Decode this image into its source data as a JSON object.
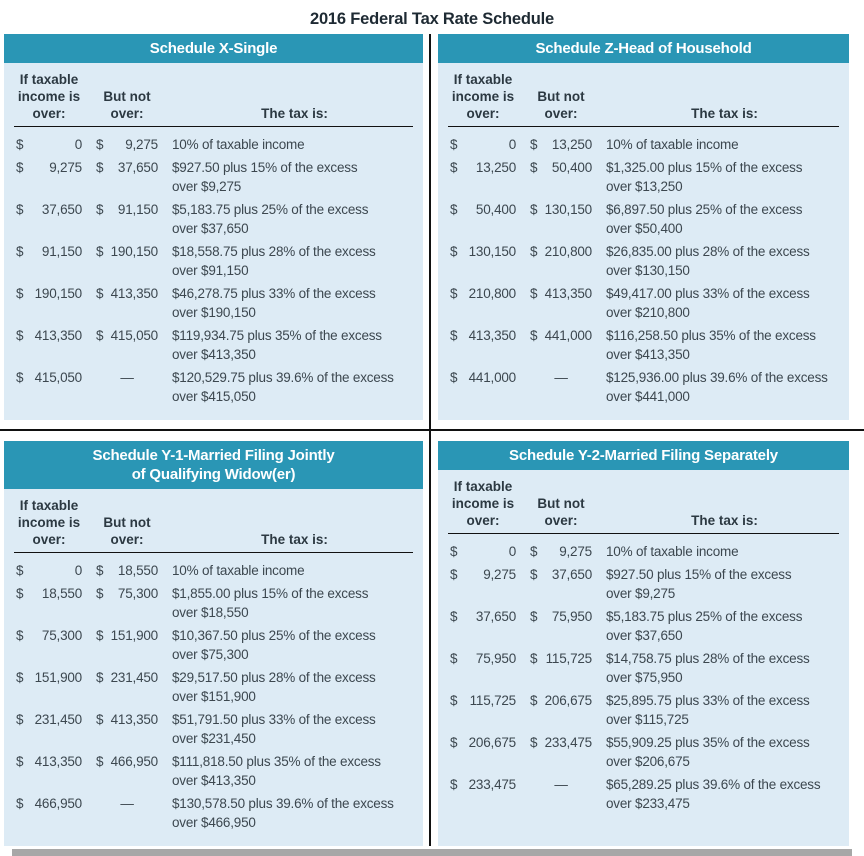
{
  "page_title": "2016 Federal Tax Rate Schedule",
  "currency_symbol": "$",
  "no_upper_limit": "—",
  "column_headers": {
    "income_over": "If taxable\nincome is\nover:",
    "but_not_over": "But not\nover:",
    "tax_is": "The tax is:"
  },
  "colors": {
    "header_teal": "#2A96B5",
    "panel_background": "#DDEBF5",
    "body_text": "#3C474F",
    "divider": "#111111",
    "shadow_bar": "#A7A7A7"
  },
  "schedules": [
    {
      "id": "x-single",
      "title": "Schedule X-Single",
      "rows": [
        {
          "over": "0",
          "not_over": "9,275",
          "tax": "10% of taxable income",
          "tax_cont": ""
        },
        {
          "over": "9,275",
          "not_over": "37,650",
          "tax": "$927.50 plus 15% of the excess",
          "tax_cont": "over $9,275"
        },
        {
          "over": "37,650",
          "not_over": "91,150",
          "tax": "$5,183.75 plus 25% of the excess",
          "tax_cont": "over $37,650"
        },
        {
          "over": "91,150",
          "not_over": "190,150",
          "tax": "$18,558.75 plus 28% of the excess",
          "tax_cont": "over $91,150"
        },
        {
          "over": "190,150",
          "not_over": "413,350",
          "tax": "$46,278.75 plus 33% of the excess",
          "tax_cont": "over $190,150"
        },
        {
          "over": "413,350",
          "not_over": "415,050",
          "tax": "$119,934.75 plus 35% of the excess",
          "tax_cont": "over $413,350"
        },
        {
          "over": "415,050",
          "not_over": "—",
          "tax": "$120,529.75 plus 39.6% of the excess",
          "tax_cont": "over $415,050"
        }
      ]
    },
    {
      "id": "z-head-of-household",
      "title": "Schedule Z-Head of Household",
      "rows": [
        {
          "over": "0",
          "not_over": "13,250",
          "tax": "10% of taxable income",
          "tax_cont": ""
        },
        {
          "over": "13,250",
          "not_over": "50,400",
          "tax": "$1,325.00 plus 15% of the excess",
          "tax_cont": "over $13,250"
        },
        {
          "over": "50,400",
          "not_over": "130,150",
          "tax": "$6,897.50 plus 25% of the excess",
          "tax_cont": "over $50,400"
        },
        {
          "over": "130,150",
          "not_over": "210,800",
          "tax": "$26,835.00 plus 28% of the excess",
          "tax_cont": "over $130,150"
        },
        {
          "over": "210,800",
          "not_over": "413,350",
          "tax": "$49,417.00 plus 33% of the excess",
          "tax_cont": "over $210,800"
        },
        {
          "over": "413,350",
          "not_over": "441,000",
          "tax": "$116,258.50 plus 35% of the excess",
          "tax_cont": "over $413,350"
        },
        {
          "over": "441,000",
          "not_over": "—",
          "tax": "$125,936.00 plus 39.6% of the excess",
          "tax_cont": "over $441,000"
        }
      ]
    },
    {
      "id": "y1-married-filing-jointly",
      "title": "Schedule Y-1-Married Filing Jointly\nof Qualifying Widow(er)",
      "rows": [
        {
          "over": "0",
          "not_over": "18,550",
          "tax": "10% of taxable income",
          "tax_cont": ""
        },
        {
          "over": "18,550",
          "not_over": "75,300",
          "tax": "$1,855.00 plus 15% of the excess",
          "tax_cont": "over $18,550"
        },
        {
          "over": "75,300",
          "not_over": "151,900",
          "tax": "$10,367.50 plus 25% of the excess",
          "tax_cont": "over $75,300"
        },
        {
          "over": "151,900",
          "not_over": "231,450",
          "tax": "$29,517.50 plus 28% of the excess",
          "tax_cont": "over $151,900"
        },
        {
          "over": "231,450",
          "not_over": "413,350",
          "tax": "$51,791.50 plus 33% of the excess",
          "tax_cont": "over $231,450"
        },
        {
          "over": "413,350",
          "not_over": "466,950",
          "tax": "$111,818.50 plus 35% of the excess",
          "tax_cont": "over $413,350"
        },
        {
          "over": "466,950",
          "not_over": "—",
          "tax": "$130,578.50 plus 39.6% of the excess",
          "tax_cont": "over $466,950"
        }
      ]
    },
    {
      "id": "y2-married-filing-separately",
      "title": "Schedule Y-2-Married Filing Separately",
      "rows": [
        {
          "over": "0",
          "not_over": "9,275",
          "tax": "10% of taxable income",
          "tax_cont": ""
        },
        {
          "over": "9,275",
          "not_over": "37,650",
          "tax": "$927.50 plus 15% of the excess",
          "tax_cont": "over $9,275"
        },
        {
          "over": "37,650",
          "not_over": "75,950",
          "tax": "$5,183.75 plus 25% of the excess",
          "tax_cont": "over $37,650"
        },
        {
          "over": "75,950",
          "not_over": "115,725",
          "tax": "$14,758.75 plus 28% of the excess",
          "tax_cont": "over $75,950"
        },
        {
          "over": "115,725",
          "not_over": "206,675",
          "tax": "$25,895.75 plus 33% of the excess",
          "tax_cont": "over $115,725"
        },
        {
          "over": "206,675",
          "not_over": "233,475",
          "tax": "$55,909.25 plus 35% of the excess",
          "tax_cont": "over $206,675"
        },
        {
          "over": "233,475",
          "not_over": "—",
          "tax": "$65,289.25 plus 39.6% of the excess",
          "tax_cont": "over $233,475"
        }
      ]
    }
  ]
}
